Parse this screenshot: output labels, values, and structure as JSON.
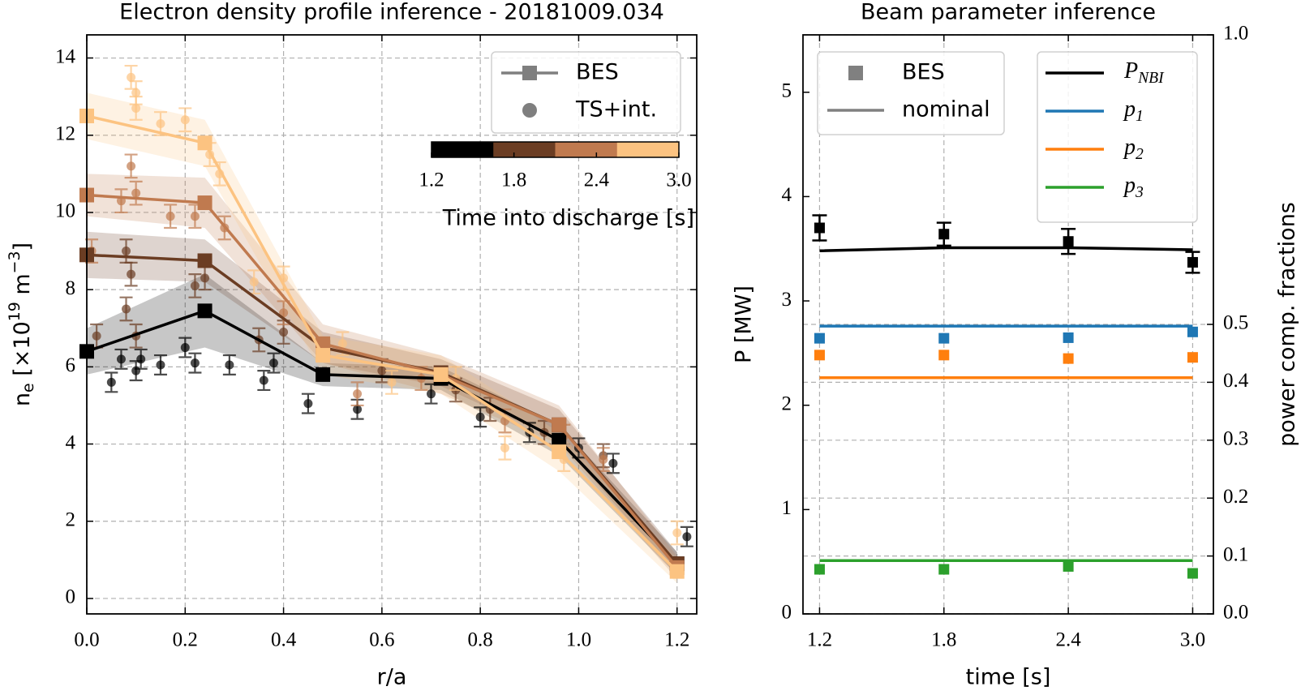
{
  "chart_data": [
    {
      "type": "line",
      "title": "Electron density profile inference - 20181009.034",
      "xlabel": "r/a",
      "ylabel": [
        {
          "text": "n"
        },
        {
          "text": "e",
          "sub": true
        },
        {
          "text": " [×10"
        },
        {
          "text": "19",
          "sup": true
        },
        {
          "text": " m"
        },
        {
          "text": "−3",
          "sup": true
        },
        {
          "text": "]"
        }
      ],
      "xlim": [
        0,
        1.24
      ],
      "ylim": [
        -0.4,
        14.6
      ],
      "xticks": [
        {
          "value": 0,
          "label": "0.0"
        },
        0.2,
        0.4,
        0.6,
        0.8,
        {
          "value": 1,
          "label": "1.0"
        },
        1.2
      ],
      "yticks": [
        0,
        2,
        4,
        6,
        8,
        10,
        12,
        14
      ],
      "grid_axes": [
        "x",
        "y"
      ],
      "connect": true,
      "legend": {
        "position": "upper right",
        "color": "#7f7f7f",
        "entries": [
          {
            "name": "BES",
            "marker": "square-line"
          },
          {
            "name": "TS+int.",
            "marker": "circle"
          }
        ]
      },
      "colorbar": {
        "label": "Time into discharge [s]",
        "lim": [
          1.2,
          3.0
        ],
        "ticks": [
          1.2,
          1.8,
          2.4,
          {
            "value": 3,
            "label": "3.0"
          }
        ],
        "colors": [
          "#000000",
          "#6b3d23",
          "#c07a4f",
          "#fcc381"
        ]
      },
      "x": [
        0,
        0.24,
        0.48,
        0.72,
        0.96,
        1.2
      ],
      "series": [
        {
          "color": "#000000",
          "values": [
            6.4,
            7.45,
            5.8,
            5.7,
            4.1,
            0.9
          ],
          "band_lower": [
            5.8,
            6.5,
            5.5,
            5.4,
            3.7,
            0.6
          ],
          "band_upper": [
            7.0,
            8.4,
            6.1,
            6.0,
            4.5,
            1.2
          ],
          "ts_x": [
            0.05,
            0.07,
            0.1,
            0.11,
            0.15,
            0.2,
            0.22,
            0.29,
            0.36,
            0.38,
            0.45,
            0.55,
            0.7,
            0.8,
            0.9,
            1.0,
            1.07,
            1.22
          ],
          "ts_values": [
            5.6,
            6.2,
            5.9,
            6.2,
            6.05,
            6.5,
            6.1,
            6.05,
            5.65,
            6.1,
            5.05,
            4.9,
            5.3,
            4.7,
            4.3,
            3.9,
            3.5,
            1.6
          ],
          "ts_errors": [
            0.25,
            0.25,
            0.25,
            0.25,
            0.25,
            0.25,
            0.25,
            0.25,
            0.25,
            0.25,
            0.25,
            0.25,
            0.25,
            0.25,
            0.25,
            0.25,
            0.25,
            0.25
          ]
        },
        {
          "color": "#6b3d23",
          "values": [
            8.9,
            8.75,
            6.5,
            5.85,
            4.5,
            0.9
          ],
          "band_lower": [
            8.3,
            8.2,
            6.1,
            5.5,
            4.1,
            0.6
          ],
          "band_upper": [
            9.5,
            9.3,
            6.9,
            6.2,
            4.9,
            1.2
          ],
          "ts_x": [
            0.02,
            0.08,
            0.08,
            0.09,
            0.1,
            0.22,
            0.24,
            0.35,
            0.4,
            0.6,
            0.75,
            0.82,
            0.93,
            1.05
          ],
          "ts_values": [
            6.8,
            9.0,
            7.5,
            8.4,
            6.8,
            8.1,
            8.3,
            6.7,
            6.9,
            5.9,
            5.4,
            4.9,
            4.3,
            3.7
          ],
          "ts_errors": [
            0.3,
            0.3,
            0.3,
            0.3,
            0.3,
            0.3,
            0.3,
            0.3,
            0.3,
            0.3,
            0.3,
            0.3,
            0.3,
            0.3
          ]
        },
        {
          "color": "#c07a4f",
          "values": [
            10.45,
            10.25,
            6.6,
            5.8,
            4.5,
            0.8
          ],
          "band_lower": [
            9.9,
            9.6,
            6.1,
            5.3,
            4.0,
            0.5
          ],
          "band_upper": [
            11.0,
            10.9,
            7.1,
            6.3,
            5.0,
            1.1
          ],
          "ts_x": [
            0.01,
            0.07,
            0.09,
            0.1,
            0.17,
            0.22,
            0.28,
            0.4,
            0.55,
            0.68,
            0.85,
            0.97,
            1.05
          ],
          "ts_values": [
            9.0,
            10.3,
            11.2,
            10.5,
            9.9,
            9.9,
            9.6,
            7.4,
            5.3,
            5.7,
            4.6,
            4.2,
            3.6
          ],
          "ts_errors": [
            0.3,
            0.3,
            0.3,
            0.3,
            0.3,
            0.3,
            0.3,
            0.3,
            0.3,
            0.3,
            0.3,
            0.3,
            0.3
          ]
        },
        {
          "color": "#fcc381",
          "values": [
            12.5,
            11.8,
            6.3,
            5.8,
            3.8,
            0.7
          ],
          "band_lower": [
            11.9,
            11.2,
            5.8,
            5.3,
            3.3,
            0.4
          ],
          "band_upper": [
            13.1,
            12.4,
            6.8,
            6.3,
            4.3,
            1.0
          ],
          "ts_x": [
            0.09,
            0.1,
            0.1,
            0.15,
            0.2,
            0.25,
            0.27,
            0.34,
            0.4,
            0.52,
            0.62,
            0.75,
            0.85,
            0.97,
            1.2
          ],
          "ts_values": [
            13.5,
            13.1,
            12.7,
            12.3,
            12.4,
            11.5,
            11.0,
            8.2,
            8.3,
            6.6,
            5.6,
            5.7,
            3.9,
            3.6,
            1.7
          ],
          "ts_errors": [
            0.3,
            0.3,
            0.3,
            0.3,
            0.3,
            0.3,
            0.3,
            0.3,
            0.3,
            0.3,
            0.3,
            0.3,
            0.3,
            0.3,
            0.3
          ]
        }
      ]
    },
    {
      "type": "line",
      "title": "Beam parameter inference",
      "xlabel": "time [s]",
      "ylabel": "P [MW]",
      "y2label": "power comp. fractions",
      "xlim": [
        1.12,
        3.1
      ],
      "ylim": [
        0,
        5.55
      ],
      "y2lim": [
        0,
        1
      ],
      "xticks": [
        1.2,
        1.8,
        2.4,
        {
          "value": 3,
          "label": "3.0"
        }
      ],
      "yticks": [
        0,
        1,
        2,
        3,
        4,
        5
      ],
      "y2ticks": [
        {
          "value": 0,
          "label": "0.0"
        },
        0.1,
        0.2,
        0.3,
        0.4,
        0.5,
        {
          "value": 1,
          "label": "1.0"
        }
      ],
      "grid_axes": [
        "x",
        "y2"
      ],
      "connect": false,
      "legend": {
        "position": "upper left",
        "color": "#808080",
        "entries": [
          {
            "name": "BES",
            "marker": "square"
          },
          {
            "name": "nominal",
            "marker": "line"
          }
        ]
      },
      "series_legend": "upper right",
      "x": [
        1.2,
        1.8,
        2.4,
        3.0
      ],
      "series": [
        {
          "name": [
            {
              "text": "P"
            },
            {
              "text": "NBI",
              "sub": true
            }
          ],
          "color": "#000000",
          "axis": "y",
          "values": [
            3.7,
            3.64,
            3.57,
            3.37
          ],
          "errors": [
            0.12,
            0.11,
            0.12,
            0.1
          ],
          "nominal": [
            3.48,
            3.51,
            3.51,
            3.49
          ]
        },
        {
          "name": [
            {
              "text": "p"
            },
            {
              "text": "1",
              "sub": true
            }
          ],
          "color": "#1f77b4",
          "axis": "y2",
          "values": [
            0.476,
            0.476,
            0.477,
            0.487
          ],
          "nominal": [
            0.497,
            0.497,
            0.497,
            0.497
          ]
        },
        {
          "name": [
            {
              "text": "p"
            },
            {
              "text": "2",
              "sub": true
            }
          ],
          "color": "#ff7f0e",
          "axis": "y2",
          "values": [
            0.447,
            0.447,
            0.441,
            0.443
          ],
          "nominal": [
            0.408,
            0.408,
            0.408,
            0.408
          ]
        },
        {
          "name": [
            {
              "text": "p"
            },
            {
              "text": "3",
              "sub": true
            }
          ],
          "color": "#2ca02c",
          "axis": "y2",
          "values": [
            0.077,
            0.077,
            0.082,
            0.07
          ],
          "nominal": [
            0.092,
            0.092,
            0.092,
            0.092
          ]
        }
      ]
    }
  ]
}
